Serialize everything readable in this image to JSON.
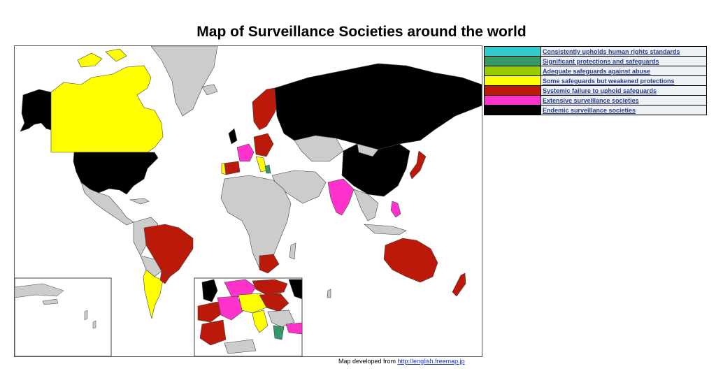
{
  "title": "Map of Surveillance Societies around the world",
  "legend": [
    {
      "label": "Consistently upholds human rights standards",
      "color": "#33cccc"
    },
    {
      "label": "Significant protections and safeguards",
      "color": "#339966"
    },
    {
      "label": "Adequate safeguards against abuse",
      "color": "#99cc00"
    },
    {
      "label": "Some safeguards but weakened protections",
      "color": "#ffff00"
    },
    {
      "label": "Systemic failure to uphold safeguards",
      "color": "#bb1a0a"
    },
    {
      "label": "Extensive surveillance societies",
      "color": "#ff33cc"
    },
    {
      "label": "Endemic surveillance societies",
      "color": "#000000"
    }
  ],
  "credit": {
    "prefix": "Map developed from ",
    "link": "http://english.freemap.jp"
  },
  "colors": {
    "unrated": "#cccccc",
    "water": "#ffffff",
    "border": "#555555"
  }
}
